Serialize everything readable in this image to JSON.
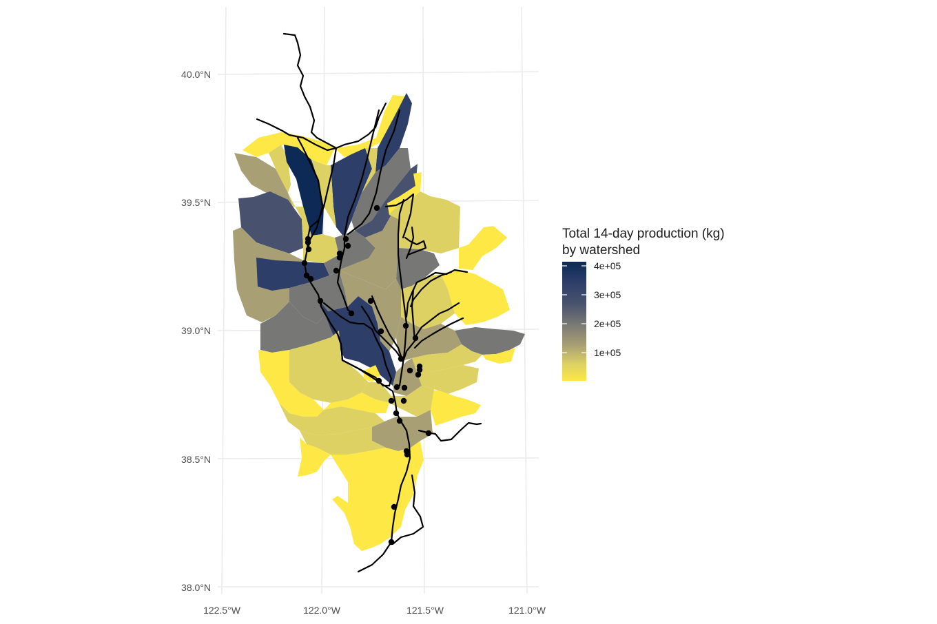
{
  "chart_data": {
    "type": "map",
    "title": "",
    "xlabel": "",
    "ylabel": "",
    "lon_ticks": [
      "122.5°W",
      "122.0°W",
      "121.5°W",
      "121.0°W"
    ],
    "lat_ticks": [
      "38.0°N",
      "38.5°N",
      "39.0°N",
      "39.5°N",
      "40.0°N"
    ],
    "grid": true,
    "legend": {
      "title_lines": [
        "Total 14-day production (kg)",
        "by watershed"
      ],
      "ticks": [
        "4e+05",
        "3e+05",
        "2e+05",
        "1e+05"
      ],
      "tick_values": [
        400000,
        300000,
        200000,
        100000
      ],
      "range": [
        0,
        430000
      ],
      "colors": [
        "#fde846",
        "#ddd163",
        "#a89f74",
        "#777775",
        "#48526e",
        "#2d3e68",
        "#0c2a55"
      ],
      "placement": "right"
    },
    "watersheds_kg": [
      12000,
      15000,
      20000,
      25000,
      40000,
      55000,
      70000,
      85000,
      100000,
      120000,
      150000,
      165000,
      180000,
      200000,
      240000,
      300000,
      330000,
      360000,
      410000
    ]
  }
}
